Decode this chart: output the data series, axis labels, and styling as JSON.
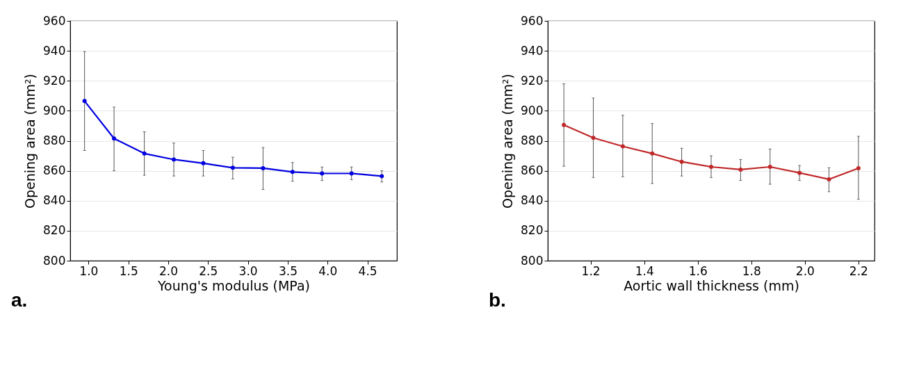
{
  "chart_data": [
    {
      "type": "line",
      "xlabel": "Young's modulus (MPa)",
      "ylabel": "Opening area (mm²)",
      "annotations": [
        "a."
      ],
      "x": [
        0.95,
        1.32,
        1.7,
        2.07,
        2.44,
        2.81,
        3.19,
        3.56,
        3.93,
        4.3,
        4.68
      ],
      "series": [
        {
          "color": "#0000e0",
          "values": [
            906.5,
            881.5,
            871.5,
            867.5,
            865,
            862,
            861.7,
            859.2,
            858.2,
            858.2,
            856.4
          ],
          "errors": [
            [
              873.5,
              939.5
            ],
            [
              860,
              902.5
            ],
            [
              857,
              886
            ],
            [
              856.5,
              878.5
            ],
            [
              856.5,
              873.5
            ],
            [
              854.5,
              869
            ],
            [
              847.5,
              875.5
            ],
            [
              853,
              865.5
            ],
            [
              853.5,
              862.5
            ],
            [
              854,
              862.5
            ],
            [
              852.5,
              860
            ]
          ]
        }
      ],
      "xlim": [
        0.77,
        4.87
      ],
      "xticks": [
        {
          "value": 1,
          "label": "1.0"
        },
        1.5,
        {
          "value": 2,
          "label": "2.0"
        },
        2.5,
        {
          "value": 3,
          "label": "3.0"
        },
        3.5,
        {
          "value": 4,
          "label": "4.0"
        },
        4.5
      ],
      "ylim": [
        800,
        960
      ],
      "yticks": [
        800,
        820,
        840,
        860,
        880,
        900,
        920,
        940,
        960
      ],
      "grid": "y",
      "marker": "circle",
      "line_style": "solid"
    },
    {
      "type": "line",
      "xlabel": "Aortic wall thickness (mm)",
      "ylabel": "Opening area (mm²)",
      "annotations": [
        "b."
      ],
      "x": [
        1.1,
        1.21,
        1.32,
        1.43,
        1.54,
        1.65,
        1.76,
        1.87,
        1.98,
        2.09,
        2.2
      ],
      "series": [
        {
          "color": "#c0282a",
          "values": [
            890.5,
            882,
            876.3,
            871.5,
            866,
            862.6,
            860.8,
            862.6,
            858.6,
            854.3,
            861.7
          ],
          "errors": [
            [
              863,
              918
            ],
            [
              855.5,
              908.5
            ],
            [
              856,
              897
            ],
            [
              851.5,
              891.5
            ],
            [
              856.5,
              875
            ],
            [
              855.5,
              870
            ],
            [
              853.5,
              867.5
            ],
            [
              851,
              874.5
            ],
            [
              853.5,
              863.5
            ],
            [
              846,
              862
            ],
            [
              841,
              883
            ]
          ]
        }
      ],
      "xlim": [
        1.04,
        2.26
      ],
      "xticks": [
        1.2,
        1.4,
        1.6,
        1.8,
        {
          "value": 2,
          "label": "2.0"
        },
        2.2
      ],
      "ylim": [
        800,
        960
      ],
      "yticks": [
        800,
        820,
        840,
        860,
        880,
        900,
        920,
        940,
        960
      ],
      "grid": "y",
      "marker": "circle",
      "line_style": "solid"
    }
  ]
}
